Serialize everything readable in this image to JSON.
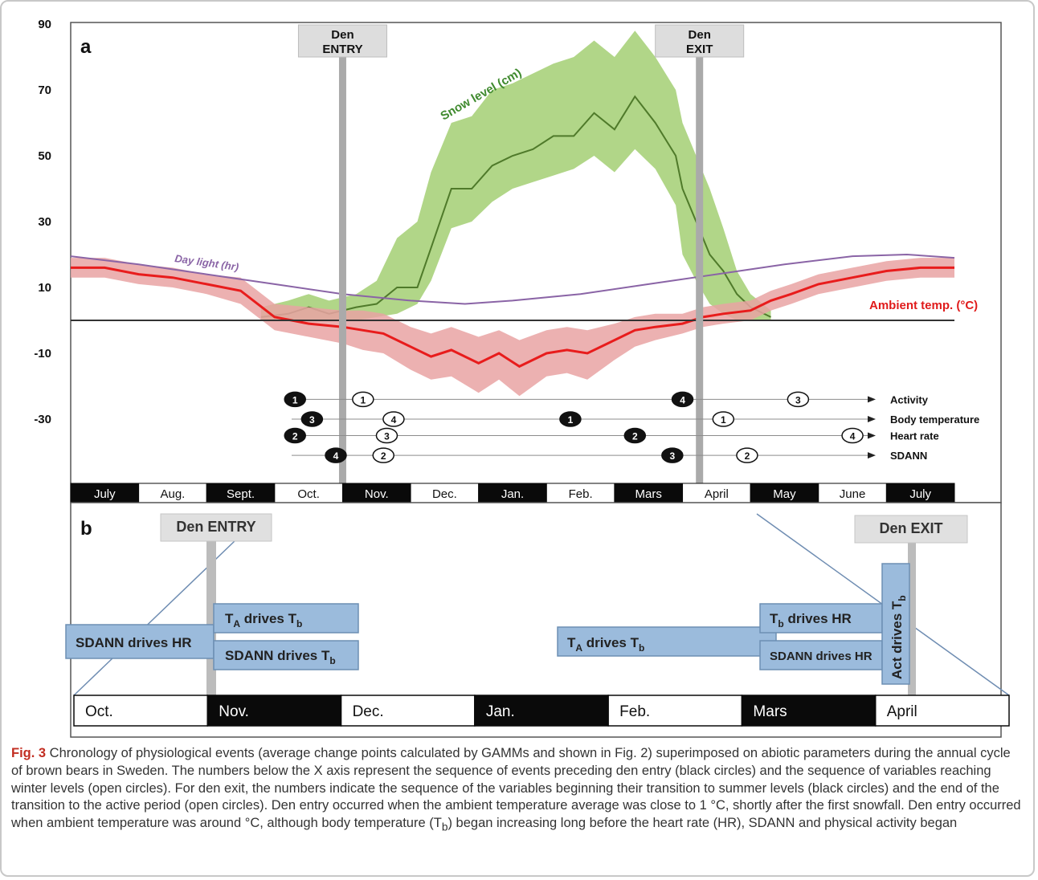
{
  "panel_a": {
    "label": "a",
    "den_entry": [
      "Den",
      "ENTRY"
    ],
    "den_exit": [
      "Den",
      "EXIT"
    ],
    "months": [
      "July",
      "Aug.",
      "Sept.",
      "Oct.",
      "Nov.",
      "Dec.",
      "Jan.",
      "Feb.",
      "Mars",
      "April",
      "May",
      "June",
      "July"
    ],
    "month_dark": [
      true,
      false,
      true,
      false,
      true,
      false,
      true,
      false,
      true,
      false,
      true,
      false,
      true
    ]
  },
  "panel_b": {
    "label": "b",
    "den_entry": "Den ENTRY",
    "den_exit": "Den EXIT",
    "months": [
      "Oct.",
      "Nov.",
      "Dec.",
      "Jan.",
      "Feb.",
      "Mars",
      "April"
    ],
    "month_dark": [
      false,
      true,
      false,
      true,
      false,
      true,
      false
    ],
    "boxes": [
      {
        "id": "sdann-drives-hr-entry",
        "main": "SDANN drives HR"
      },
      {
        "id": "ta-drives-tb-entry",
        "main": "T",
        "sub1": "A",
        "mid": " drives T",
        "sub2": "b"
      },
      {
        "id": "sdann-drives-tb-entry",
        "main": "SDANN drives T",
        "sub2": "b"
      },
      {
        "id": "ta-drives-tb-exit",
        "main": "T",
        "sub1": "A",
        "mid": " drives T",
        "sub2": "b"
      },
      {
        "id": "tb-drives-hr-exit",
        "main": "T",
        "sub1": "b",
        "mid": " drives HR"
      },
      {
        "id": "sdann-drives-hr-exit",
        "main": "SDANN drives HR"
      },
      {
        "id": "act-drives-tb-exit",
        "main": "Act drives T",
        "sub2": "b"
      }
    ]
  },
  "colors": {
    "snow_band": "#a9d27b",
    "snow_line": "#4f7a2a",
    "temp_band": "#e9a3a3",
    "temp_line": "#e81c1c",
    "daylight": "#8a64a6",
    "den_bar": "#aaaaaa",
    "box_fill": "#9bbbdc",
    "box_stroke": "#6d8fb3"
  },
  "chart_data": {
    "type": "line",
    "title": "",
    "xlabel": "",
    "ylabel": "",
    "ylim": [
      -50,
      90
    ],
    "yticks": [
      90,
      70,
      50,
      30,
      10,
      -10,
      -30
    ],
    "x_unit": "month index (0 = start of July, 13 = end of following July)",
    "xlim": [
      0,
      13
    ],
    "den_entry_month": 4.0,
    "den_exit_month": 9.25,
    "series": [
      {
        "name": "Snow level (cm)",
        "x": [
          2.8,
          3.2,
          3.5,
          3.8,
          4.2,
          4.5,
          4.8,
          5.1,
          5.3,
          5.6,
          5.9,
          6.2,
          6.5,
          6.8,
          7.1,
          7.4,
          7.7,
          8.0,
          8.3,
          8.6,
          8.9,
          9.0,
          9.2,
          9.4,
          9.6,
          9.8,
          10.0,
          10.3
        ],
        "y": [
          1,
          2,
          4,
          2,
          4,
          5,
          10,
          10,
          22,
          40,
          40,
          47,
          50,
          52,
          56,
          56,
          63,
          58,
          68,
          60,
          50,
          40,
          30,
          20,
          15,
          8,
          4,
          1
        ],
        "band_low": [
          0,
          0,
          0,
          0,
          0,
          1,
          2,
          5,
          12,
          28,
          30,
          36,
          40,
          42,
          44,
          46,
          50,
          45,
          52,
          46,
          35,
          20,
          12,
          5,
          2,
          0,
          0,
          0
        ],
        "band_high": [
          4,
          6,
          8,
          6,
          8,
          12,
          25,
          30,
          45,
          60,
          62,
          70,
          72,
          75,
          78,
          80,
          85,
          80,
          88,
          80,
          70,
          60,
          50,
          40,
          28,
          15,
          8,
          3
        ]
      },
      {
        "name": "Ambient temp. (°C)",
        "x": [
          0,
          0.5,
          1,
          1.5,
          2,
          2.5,
          3,
          3.5,
          4,
          4.3,
          4.6,
          5,
          5.3,
          5.6,
          6,
          6.3,
          6.6,
          7,
          7.3,
          7.6,
          8,
          8.3,
          8.6,
          9,
          9.3,
          9.6,
          10,
          10.3,
          10.6,
          11,
          11.5,
          12,
          12.5,
          13
        ],
        "y": [
          16,
          16,
          14,
          13,
          11,
          9,
          1,
          -1,
          -2,
          -3,
          -4,
          -8,
          -11,
          -9,
          -13,
          -10,
          -14,
          -10,
          -9,
          -10,
          -6,
          -3,
          -2,
          -1,
          1,
          2,
          3,
          6,
          8,
          11,
          13,
          15,
          16,
          16
        ],
        "band_low": [
          13,
          13,
          11,
          10,
          8,
          5,
          -3,
          -5,
          -7,
          -9,
          -10,
          -15,
          -18,
          -17,
          -22,
          -18,
          -23,
          -17,
          -16,
          -18,
          -12,
          -8,
          -6,
          -4,
          -2,
          -1,
          0,
          3,
          5,
          8,
          10,
          12,
          13,
          13
        ],
        "band_high": [
          19,
          19,
          17,
          16,
          14,
          13,
          5,
          4,
          3,
          3,
          2,
          -2,
          -4,
          -2,
          -5,
          -3,
          -6,
          -3,
          -2,
          -3,
          -1,
          1,
          2,
          2,
          4,
          5,
          6,
          9,
          11,
          14,
          16,
          18,
          19,
          19
        ]
      },
      {
        "name": "Day light (hr)",
        "x": [
          0,
          1,
          2,
          3,
          4,
          5,
          5.8,
          6.5,
          7.5,
          8.5,
          9.5,
          10.5,
          11.5,
          12.3,
          13
        ],
        "y": [
          19.5,
          17,
          14,
          11,
          8,
          6,
          5,
          6,
          8,
          11,
          14,
          17,
          19.5,
          20,
          19
        ]
      }
    ],
    "zero_line": 0,
    "annotations": [
      "Snow level (cm)",
      "Day light (hr)",
      "Ambient temp. (°C)"
    ],
    "event_rows": [
      {
        "name": "Activity",
        "y": -24,
        "events": [
          {
            "n": "1",
            "filled": true,
            "x": 3.3
          },
          {
            "n": "1",
            "filled": false,
            "x": 4.3
          },
          {
            "n": "4",
            "filled": true,
            "x": 9.0
          },
          {
            "n": "3",
            "filled": false,
            "x": 10.7
          }
        ]
      },
      {
        "name": "Body temperature",
        "y": -30,
        "events": [
          {
            "n": "3",
            "filled": true,
            "x": 3.55
          },
          {
            "n": "4",
            "filled": false,
            "x": 4.75
          },
          {
            "n": "1",
            "filled": true,
            "x": 7.35
          },
          {
            "n": "1",
            "filled": false,
            "x": 9.6
          }
        ]
      },
      {
        "name": "Heart rate",
        "y": -35,
        "events": [
          {
            "n": "2",
            "filled": true,
            "x": 3.3
          },
          {
            "n": "3",
            "filled": false,
            "x": 4.65
          },
          {
            "n": "2",
            "filled": true,
            "x": 8.3
          },
          {
            "n": "4",
            "filled": false,
            "x": 11.5
          }
        ]
      },
      {
        "name": "SDANN",
        "y": -41,
        "events": [
          {
            "n": "4",
            "filled": true,
            "x": 3.9
          },
          {
            "n": "2",
            "filled": false,
            "x": 4.6
          },
          {
            "n": "3",
            "filled": true,
            "x": 8.85
          },
          {
            "n": "2",
            "filled": false,
            "x": 9.95
          }
        ]
      }
    ]
  },
  "caption": {
    "fig_label": "Fig. 3",
    "text_1": " Chronology of physiological events (average change points calculated by GAMMs and shown in Fig. 2) superimposed on abiotic parameters during the annual cycle of brown bears in Sweden. The numbers below the X axis represent the sequence of events preceding den entry (black circles) and the sequence of variables reaching winter levels (open circles). For den exit, the numbers indicate the sequence of the variables beginning their transition to summer levels (black circles) and the end of the transition to the active period (open circles). Den entry occurred when the ambient temperature average was close to 1 °C, shortly after the first snowfall. Den entry occurred when ambient temperature was around °C, although body temperature (T",
    "sub": "b",
    "text_2": ") began increasing long before the heart rate (HR), SDANN and physical activity began"
  }
}
